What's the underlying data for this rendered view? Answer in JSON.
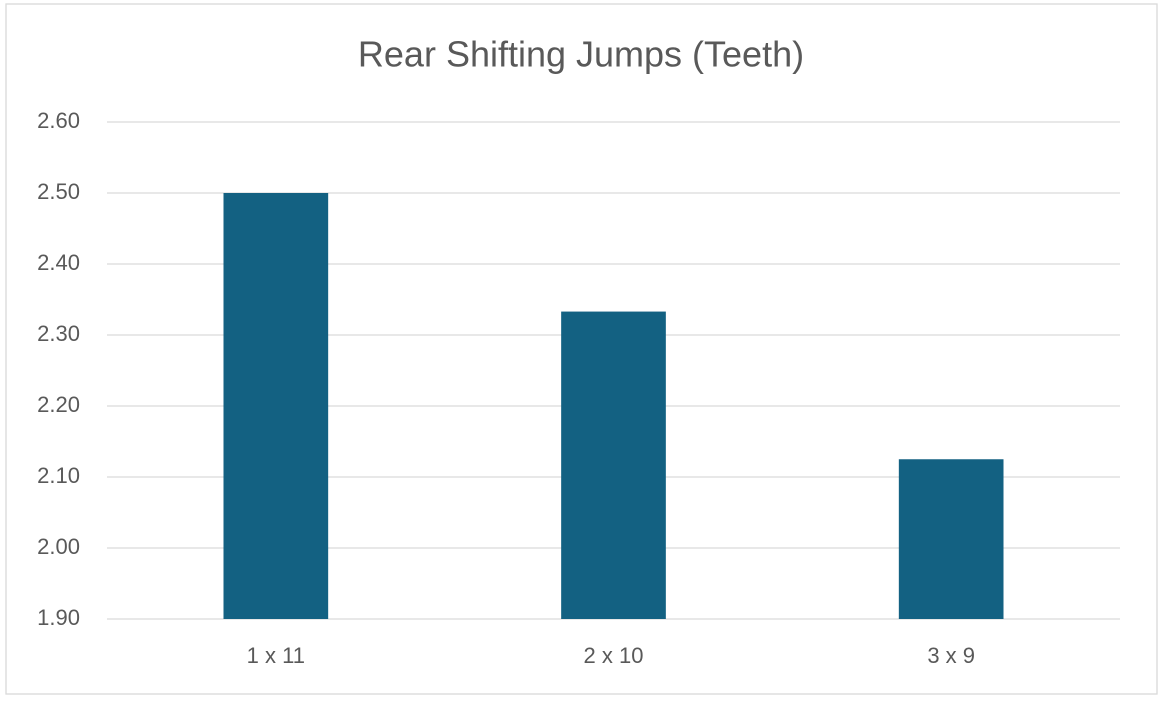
{
  "chart_data": {
    "type": "bar",
    "title": "Rear Shifting Jumps (Teeth)",
    "categories": [
      "1 x 11",
      "2 x 10",
      "3 x 9"
    ],
    "values": [
      2.5,
      2.333,
      2.125
    ],
    "color": "#136182",
    "ylim": [
      1.9,
      2.6
    ],
    "yticks": [
      {
        "value": 1.9,
        "label": "1.90"
      },
      {
        "value": 2.0,
        "label": "2.00"
      },
      {
        "value": 2.1,
        "label": "2.10"
      },
      {
        "value": 2.2,
        "label": "2.20"
      },
      {
        "value": 2.3,
        "label": "2.30"
      },
      {
        "value": 2.4,
        "label": "2.40"
      },
      {
        "value": 2.5,
        "label": "2.50"
      },
      {
        "value": 2.6,
        "label": "2.60"
      }
    ],
    "grid": true
  }
}
